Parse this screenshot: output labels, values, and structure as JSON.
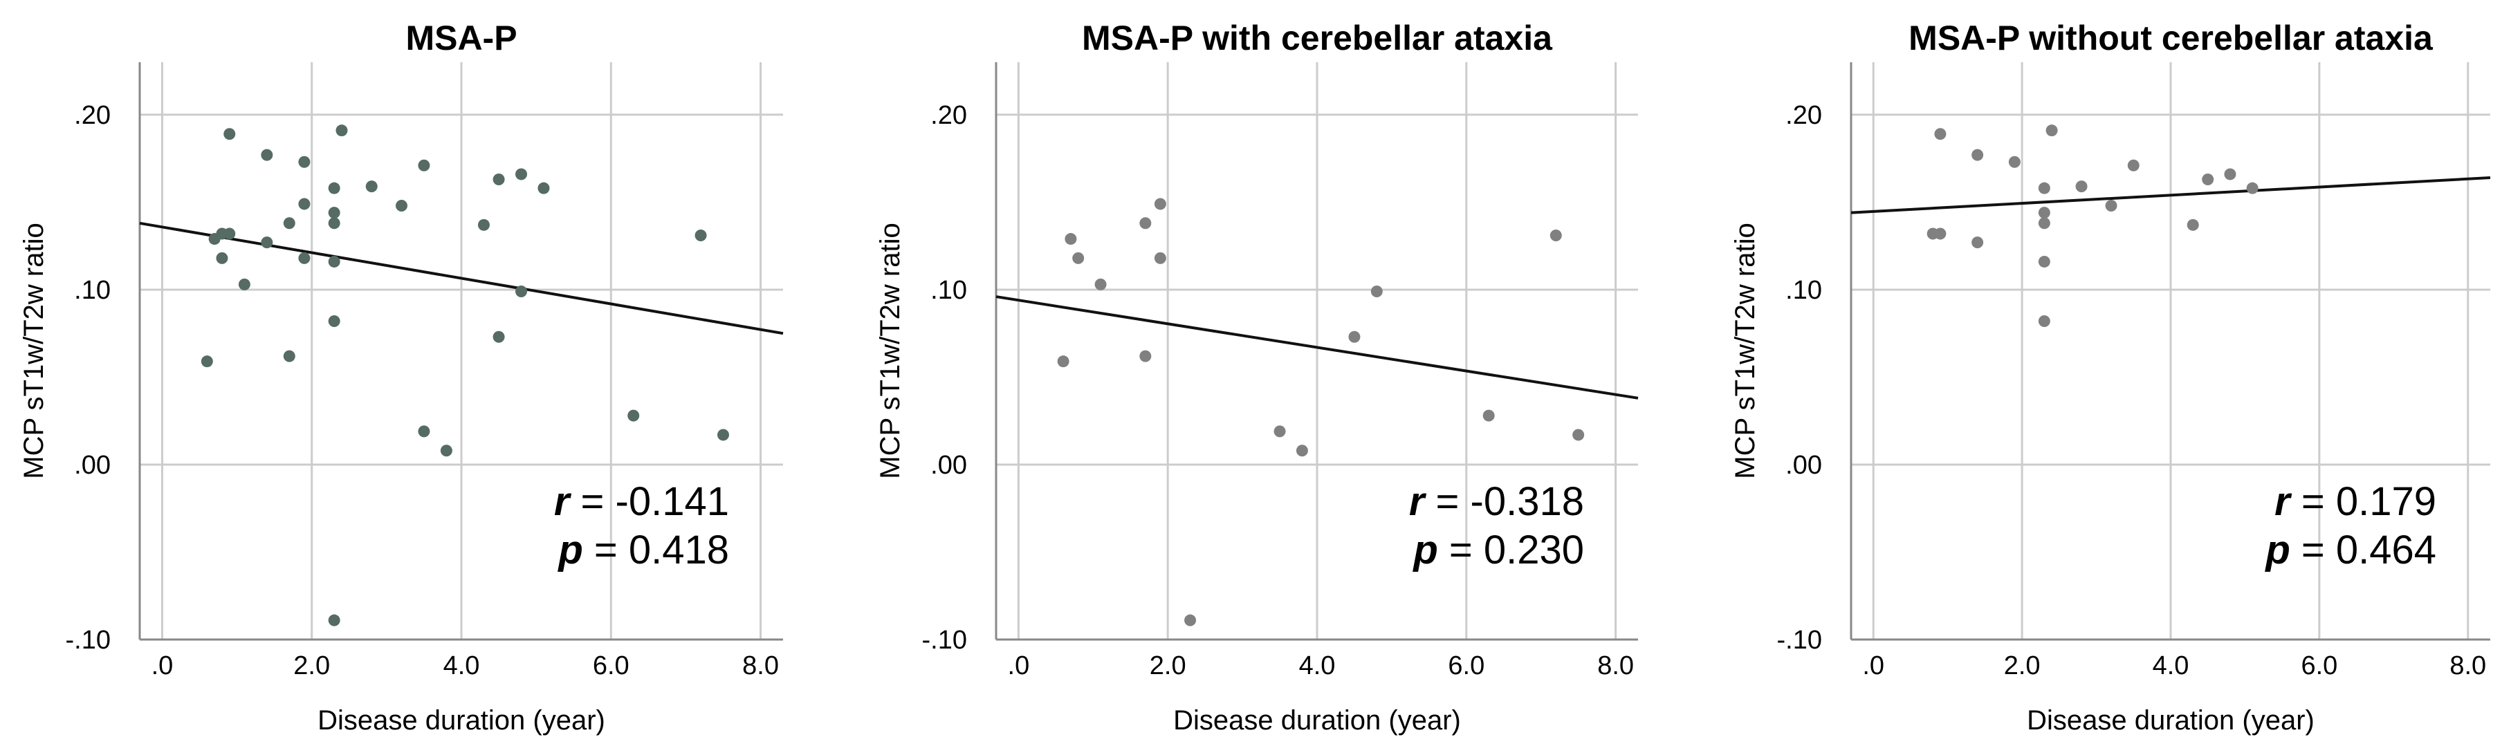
{
  "colors": {
    "frame": "#888888",
    "grid": "#cccccc",
    "fit_line": "#111111",
    "panel_points": [
      "#556b63",
      "#808080",
      "#808080"
    ]
  },
  "chart_data": [
    {
      "type": "scatter",
      "title": "MSA-P",
      "xlabel": "Disease duration (year)",
      "ylabel": "MCP sT1w/T2w ratio",
      "xlim": [
        -0.3,
        8.3
      ],
      "ylim": [
        -0.1,
        0.23
      ],
      "x_ticks": [
        0,
        2,
        4,
        6,
        8
      ],
      "x_tick_labels": [
        ".0",
        "2.0",
        "4.0",
        "6.0",
        "8.0"
      ],
      "y_ticks": [
        -0.1,
        0.0,
        0.1,
        0.2
      ],
      "y_tick_labels": [
        "-.10",
        ".00",
        ".10",
        ".20"
      ],
      "grid": true,
      "points": [
        {
          "x": 0.6,
          "y": 0.059
        },
        {
          "x": 0.7,
          "y": 0.129
        },
        {
          "x": 0.8,
          "y": 0.132
        },
        {
          "x": 0.8,
          "y": 0.118
        },
        {
          "x": 0.9,
          "y": 0.132
        },
        {
          "x": 0.9,
          "y": 0.189
        },
        {
          "x": 1.1,
          "y": 0.103
        },
        {
          "x": 1.4,
          "y": 0.177
        },
        {
          "x": 1.4,
          "y": 0.127
        },
        {
          "x": 1.7,
          "y": 0.138
        },
        {
          "x": 1.7,
          "y": 0.062
        },
        {
          "x": 1.9,
          "y": 0.173
        },
        {
          "x": 1.9,
          "y": 0.149
        },
        {
          "x": 1.9,
          "y": 0.118
        },
        {
          "x": 2.3,
          "y": 0.158
        },
        {
          "x": 2.3,
          "y": 0.144
        },
        {
          "x": 2.3,
          "y": 0.138
        },
        {
          "x": 2.3,
          "y": 0.116
        },
        {
          "x": 2.3,
          "y": 0.082
        },
        {
          "x": 2.3,
          "y": -0.089
        },
        {
          "x": 2.4,
          "y": 0.191
        },
        {
          "x": 2.8,
          "y": 0.159
        },
        {
          "x": 3.2,
          "y": 0.148
        },
        {
          "x": 3.5,
          "y": 0.171
        },
        {
          "x": 3.5,
          "y": 0.019
        },
        {
          "x": 3.8,
          "y": 0.008
        },
        {
          "x": 4.3,
          "y": 0.137
        },
        {
          "x": 4.5,
          "y": 0.163
        },
        {
          "x": 4.5,
          "y": 0.073
        },
        {
          "x": 4.8,
          "y": 0.166
        },
        {
          "x": 4.8,
          "y": 0.099
        },
        {
          "x": 5.1,
          "y": 0.158
        },
        {
          "x": 6.3,
          "y": 0.028
        },
        {
          "x": 7.2,
          "y": 0.131
        },
        {
          "x": 7.5,
          "y": 0.017
        }
      ],
      "fit_line": {
        "x": [
          -0.3,
          8.3
        ],
        "y": [
          0.138,
          0.075
        ]
      },
      "annotation": {
        "r_symbol": "r",
        "r_text": " = -0.141",
        "p_symbol": "p",
        "p_text": " = 0.418"
      }
    },
    {
      "type": "scatter",
      "title": "MSA-P with cerebellar ataxia",
      "xlabel": "Disease duration (year)",
      "ylabel": "MCP sT1w/T2w ratio",
      "xlim": [
        -0.3,
        8.3
      ],
      "ylim": [
        -0.1,
        0.23
      ],
      "x_ticks": [
        0,
        2,
        4,
        6,
        8
      ],
      "x_tick_labels": [
        ".0",
        "2.0",
        "4.0",
        "6.0",
        "8.0"
      ],
      "y_ticks": [
        -0.1,
        0.0,
        0.1,
        0.2
      ],
      "y_tick_labels": [
        "-.10",
        ".00",
        ".10",
        ".20"
      ],
      "grid": true,
      "points": [
        {
          "x": 0.6,
          "y": 0.059
        },
        {
          "x": 0.7,
          "y": 0.129
        },
        {
          "x": 0.8,
          "y": 0.118
        },
        {
          "x": 1.1,
          "y": 0.103
        },
        {
          "x": 1.7,
          "y": 0.138
        },
        {
          "x": 1.7,
          "y": 0.062
        },
        {
          "x": 1.9,
          "y": 0.149
        },
        {
          "x": 1.9,
          "y": 0.118
        },
        {
          "x": 2.3,
          "y": -0.089
        },
        {
          "x": 3.5,
          "y": 0.019
        },
        {
          "x": 3.8,
          "y": 0.008
        },
        {
          "x": 4.5,
          "y": 0.073
        },
        {
          "x": 4.8,
          "y": 0.099
        },
        {
          "x": 6.3,
          "y": 0.028
        },
        {
          "x": 7.2,
          "y": 0.131
        },
        {
          "x": 7.5,
          "y": 0.017
        }
      ],
      "fit_line": {
        "x": [
          -0.3,
          8.3
        ],
        "y": [
          0.096,
          0.038
        ]
      },
      "annotation": {
        "r_symbol": "r",
        "r_text": " = -0.318",
        "p_symbol": "p",
        "p_text": " = 0.230"
      }
    },
    {
      "type": "scatter",
      "title": "MSA-P without cerebellar ataxia",
      "xlabel": "Disease duration (year)",
      "ylabel": "MCP sT1w/T2w ratio",
      "xlim": [
        -0.3,
        8.3
      ],
      "ylim": [
        -0.1,
        0.23
      ],
      "x_ticks": [
        0,
        2,
        4,
        6,
        8
      ],
      "x_tick_labels": [
        ".0",
        "2.0",
        "4.0",
        "6.0",
        "8.0"
      ],
      "y_ticks": [
        -0.1,
        0.0,
        0.1,
        0.2
      ],
      "y_tick_labels": [
        "-.10",
        ".00",
        ".10",
        ".20"
      ],
      "grid": true,
      "points": [
        {
          "x": 0.8,
          "y": 0.132
        },
        {
          "x": 0.9,
          "y": 0.132
        },
        {
          "x": 0.9,
          "y": 0.189
        },
        {
          "x": 1.4,
          "y": 0.177
        },
        {
          "x": 1.4,
          "y": 0.127
        },
        {
          "x": 1.9,
          "y": 0.173
        },
        {
          "x": 2.3,
          "y": 0.158
        },
        {
          "x": 2.3,
          "y": 0.144
        },
        {
          "x": 2.3,
          "y": 0.138
        },
        {
          "x": 2.3,
          "y": 0.116
        },
        {
          "x": 2.3,
          "y": 0.082
        },
        {
          "x": 2.4,
          "y": 0.191
        },
        {
          "x": 2.8,
          "y": 0.159
        },
        {
          "x": 3.2,
          "y": 0.148
        },
        {
          "x": 3.5,
          "y": 0.171
        },
        {
          "x": 4.3,
          "y": 0.137
        },
        {
          "x": 4.5,
          "y": 0.163
        },
        {
          "x": 4.8,
          "y": 0.166
        },
        {
          "x": 5.1,
          "y": 0.158
        }
      ],
      "fit_line": {
        "x": [
          -0.3,
          8.3
        ],
        "y": [
          0.144,
          0.164
        ]
      },
      "annotation": {
        "r_symbol": "r",
        "r_text": " = 0.179",
        "p_symbol": "p",
        "p_text": " = 0.464"
      }
    }
  ]
}
